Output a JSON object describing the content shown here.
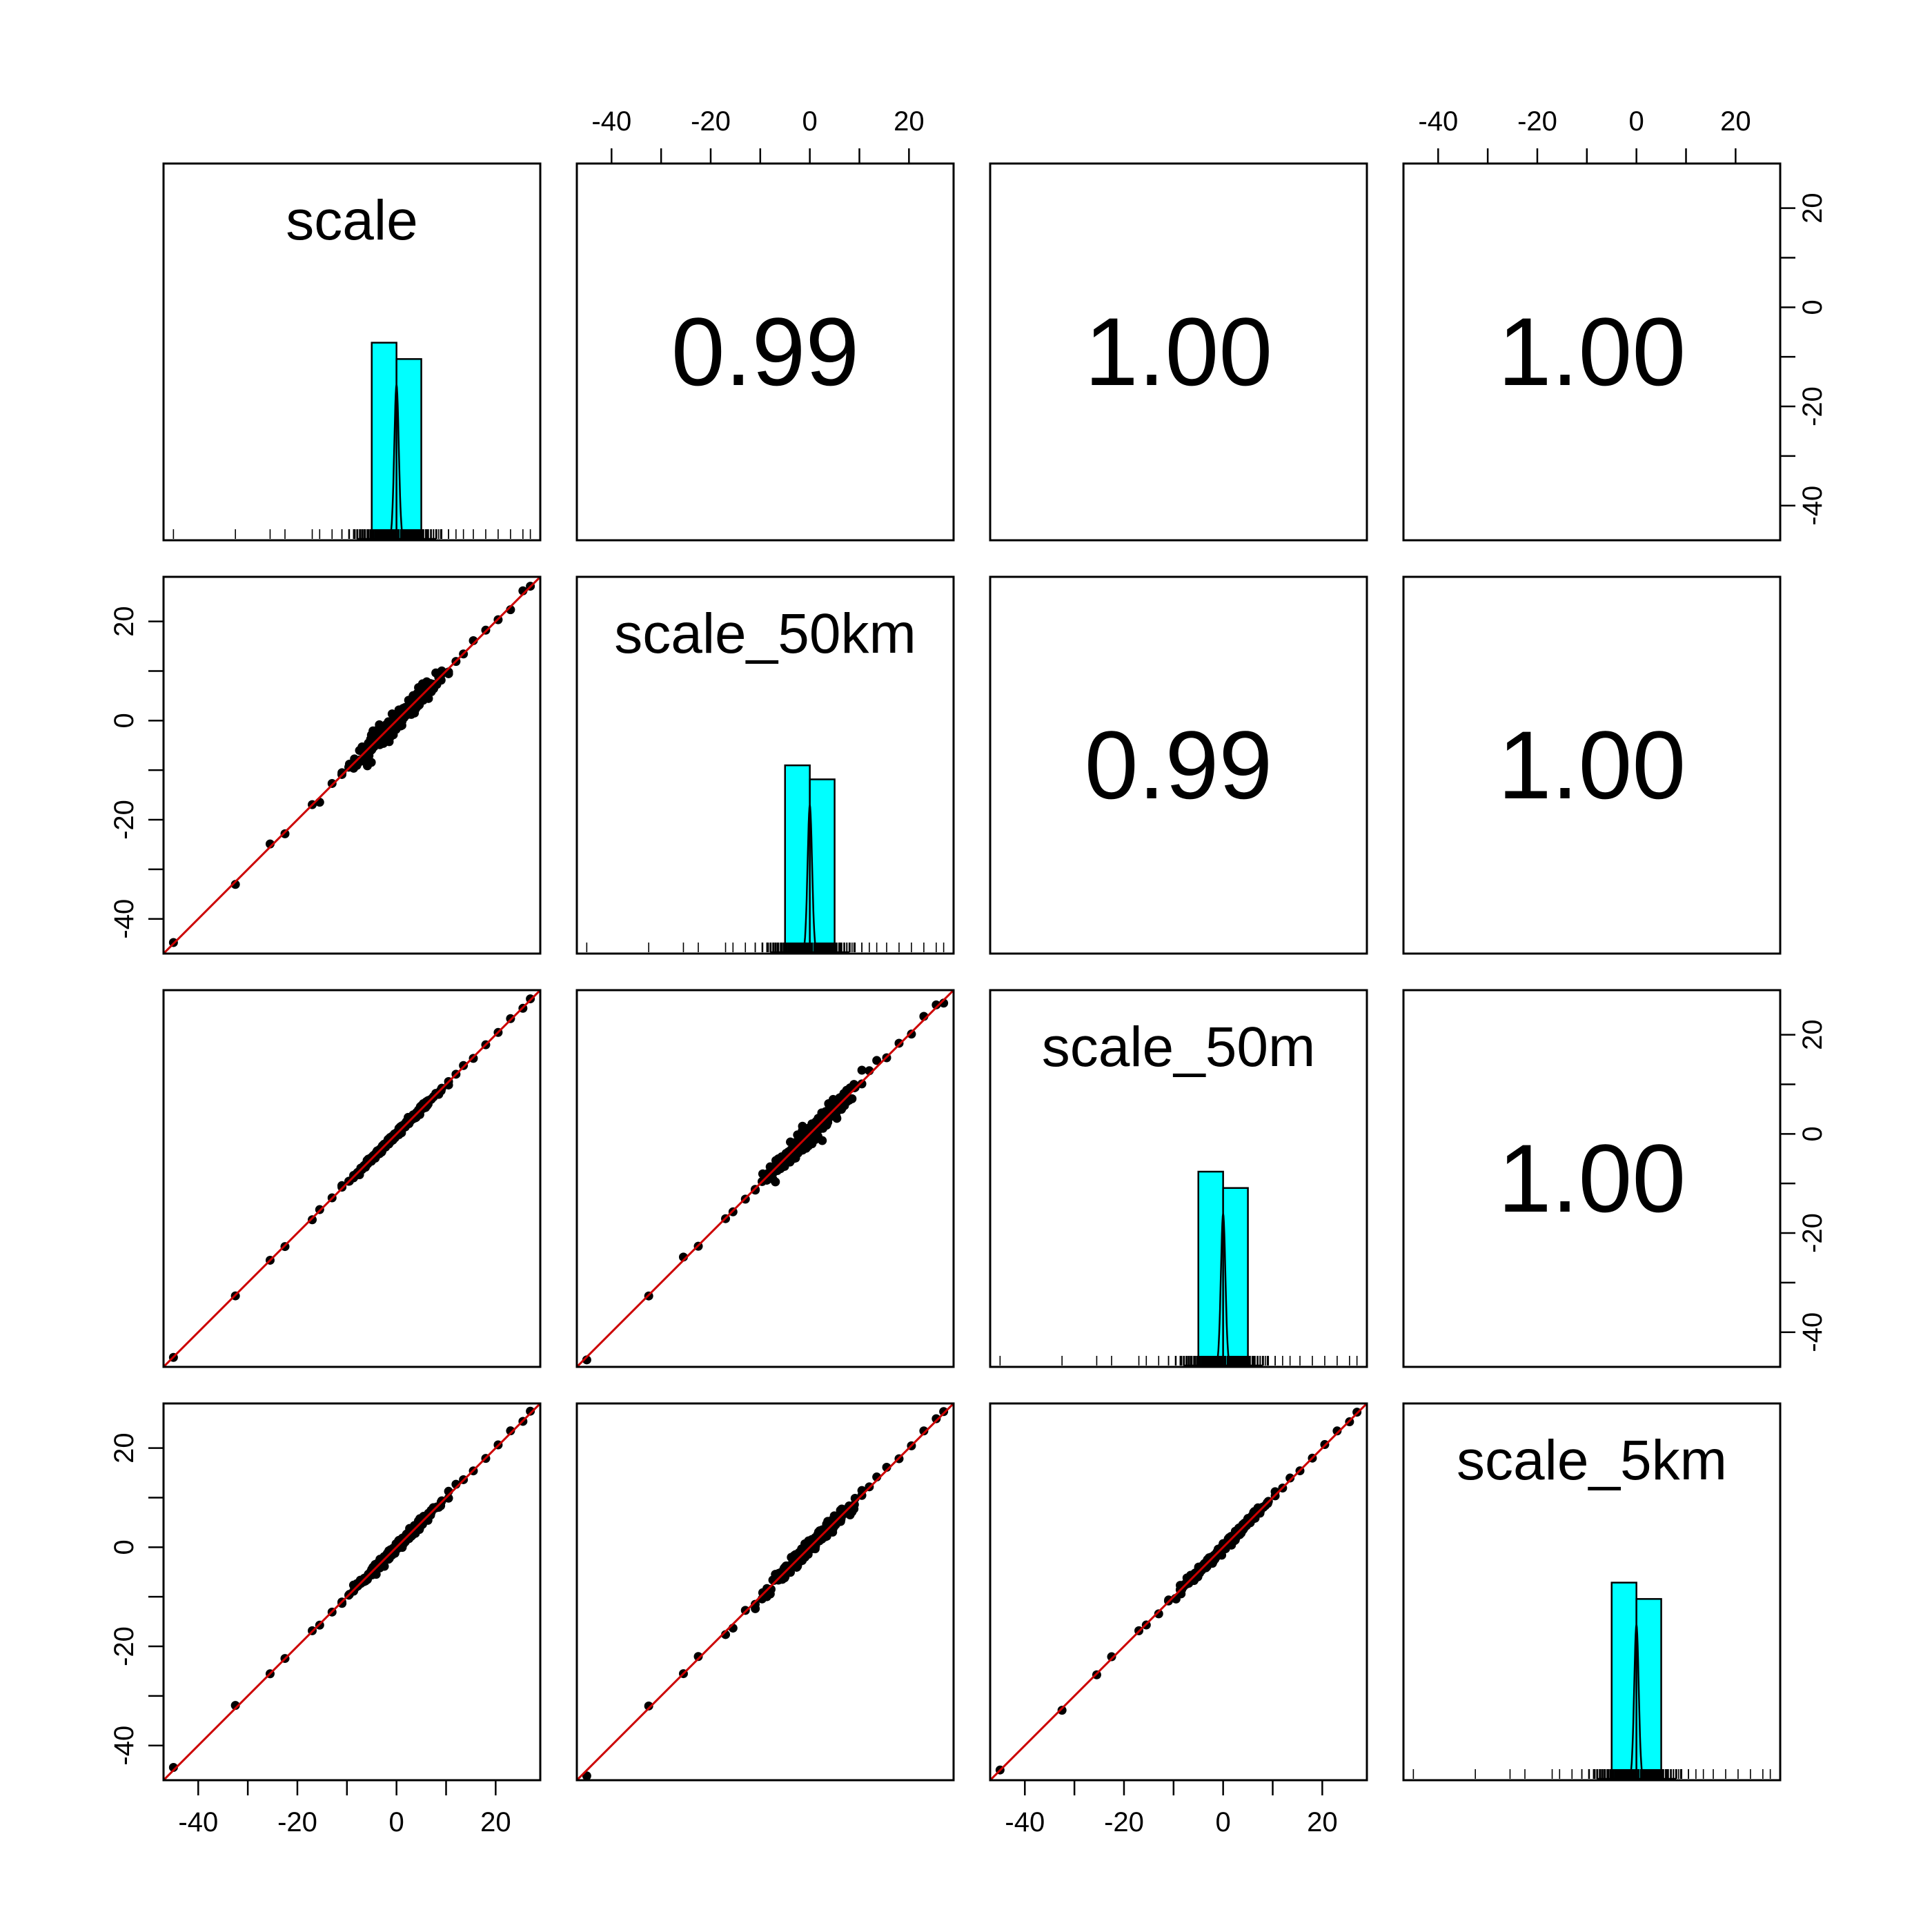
{
  "chart_data": {
    "type": "scatter-matrix",
    "variables": [
      "scale",
      "scale_50km",
      "scale_50m",
      "scale_5km"
    ],
    "axis_range": [
      -47,
      29
    ],
    "axis_ticks": [
      -40,
      -30,
      -20,
      -10,
      0,
      10,
      20
    ],
    "axis_tick_labels": [
      "-40",
      "",
      "-20",
      "",
      "0",
      "",
      "20"
    ],
    "correlations": [
      {
        "row": 0,
        "col": 1,
        "value": "0.99"
      },
      {
        "row": 0,
        "col": 2,
        "value": "1.00"
      },
      {
        "row": 0,
        "col": 3,
        "value": "1.00"
      },
      {
        "row": 1,
        "col": 2,
        "value": "0.99"
      },
      {
        "row": 1,
        "col": 3,
        "value": "1.00"
      },
      {
        "row": 2,
        "col": 3,
        "value": "1.00"
      }
    ],
    "histograms": [
      {
        "bins": [
          [
            -5,
            0,
            0.84
          ],
          [
            0,
            5,
            0.77
          ]
        ],
        "density_peak": 0.66
      },
      {
        "bins": [
          [
            -5,
            0,
            0.8
          ],
          [
            0,
            5,
            0.74
          ]
        ],
        "density_peak": 0.63
      },
      {
        "bins": [
          [
            -5,
            0,
            0.83
          ],
          [
            0,
            5,
            0.76
          ]
        ],
        "density_peak": 0.65
      },
      {
        "bins": [
          [
            -5,
            0,
            0.84
          ],
          [
            0,
            5,
            0.77
          ]
        ],
        "density_peak": 0.66
      }
    ],
    "sample_values": [
      -45,
      -32.5,
      -25.5,
      -22.5,
      -17,
      -15.5,
      -13,
      -11,
      -9.5,
      -8,
      -6.5,
      -5,
      -4,
      -3,
      -2,
      -1,
      0,
      1,
      2,
      3,
      4,
      5,
      6,
      7.5,
      9,
      10.5,
      12,
      13.5,
      15.5,
      18,
      20.5,
      23,
      25.5,
      27
    ],
    "scatter_noise": [
      {
        "row": 1,
        "col": 0,
        "spread": 1.6
      },
      {
        "row": 2,
        "col": 0,
        "spread": 0.5
      },
      {
        "row": 2,
        "col": 1,
        "spread": 1.6
      },
      {
        "row": 3,
        "col": 0,
        "spread": 0.8
      },
      {
        "row": 3,
        "col": 1,
        "spread": 1.2
      },
      {
        "row": 3,
        "col": 2,
        "spread": 0.7
      }
    ],
    "colors": {
      "histogram_fill": "#00FFFF",
      "fit_line": "#CC0000",
      "points": "#000000"
    },
    "grid": false,
    "legend": "none"
  }
}
